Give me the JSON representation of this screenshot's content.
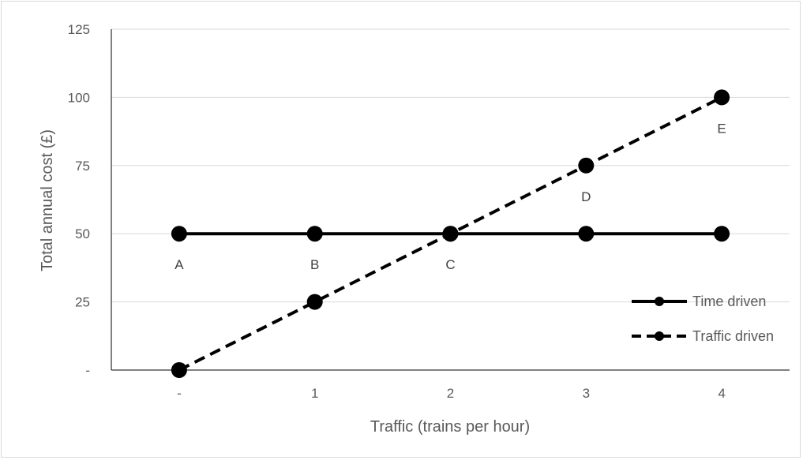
{
  "chart_data": {
    "type": "line",
    "xlabel": "Traffic (trains per hour)",
    "ylabel": "Total annual cost (£)",
    "categories": [
      "-",
      "1",
      "2",
      "3",
      "4"
    ],
    "x": [
      0,
      1,
      2,
      3,
      4
    ],
    "ylim": [
      0,
      125
    ],
    "y_ticks": [
      {
        "value": 0,
        "label": "-"
      },
      {
        "value": 25,
        "label": "25"
      },
      {
        "value": 50,
        "label": "50"
      },
      {
        "value": 75,
        "label": "75"
      },
      {
        "value": 100,
        "label": "100"
      },
      {
        "value": 125,
        "label": "125"
      }
    ],
    "grid": true,
    "legend_position": "right",
    "series": [
      {
        "name": "Time driven",
        "style": "solid",
        "color": "#000000",
        "values": [
          50,
          50,
          50,
          50,
          50
        ]
      },
      {
        "name": "Traffic driven",
        "style": "dashed",
        "color": "#000000",
        "values": [
          0,
          25,
          50,
          75,
          100
        ]
      }
    ],
    "point_labels": [
      {
        "text": "A",
        "x": 0,
        "y": 50
      },
      {
        "text": "B",
        "x": 1,
        "y": 50
      },
      {
        "text": "C",
        "x": 2,
        "y": 50
      },
      {
        "text": "D",
        "x": 3,
        "y": 75
      },
      {
        "text": "E",
        "x": 4,
        "y": 100
      }
    ]
  }
}
